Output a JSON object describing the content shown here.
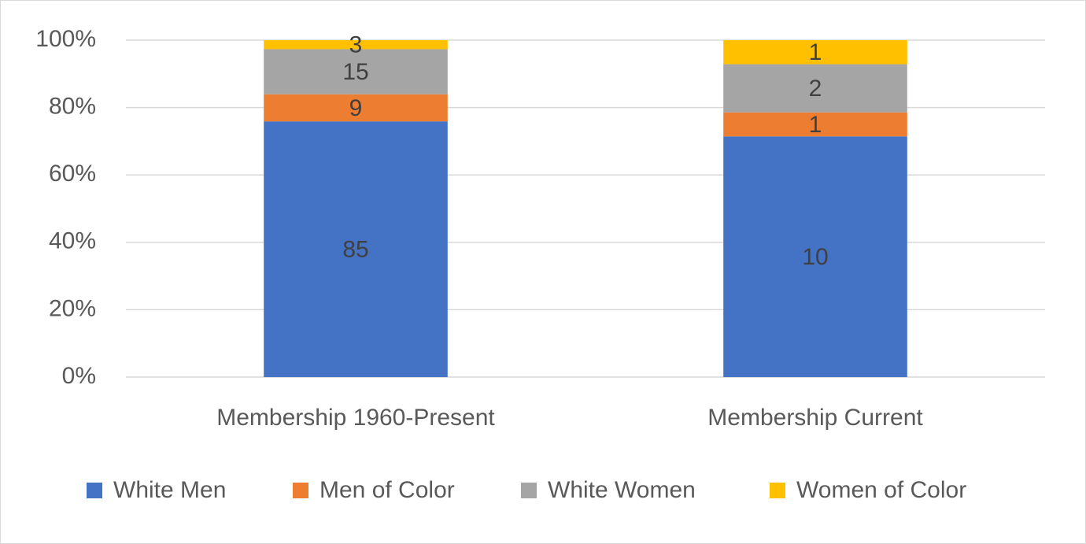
{
  "chart_data": {
    "type": "bar",
    "stacking": "percent",
    "categories": [
      "Membership 1960-Present",
      "Membership Current"
    ],
    "series": [
      {
        "name": "White Men",
        "color": "#4472c4",
        "values": [
          85,
          10
        ]
      },
      {
        "name": "Men of Color",
        "color": "#ed7d31",
        "values": [
          9,
          1
        ]
      },
      {
        "name": "White Women",
        "color": "#a5a5a5",
        "values": [
          15,
          2
        ]
      },
      {
        "name": "Women of Color",
        "color": "#ffc000",
        "values": [
          3,
          1
        ]
      }
    ],
    "ylim": [
      0,
      100
    ],
    "yticks": [
      {
        "value": 0,
        "label": "0%"
      },
      {
        "value": 20,
        "label": "20%"
      },
      {
        "value": 40,
        "label": "40%"
      },
      {
        "value": 60,
        "label": "60%"
      },
      {
        "value": 80,
        "label": "80%"
      },
      {
        "value": 100,
        "label": "100%"
      }
    ],
    "grid": true,
    "legend": "bottom"
  }
}
